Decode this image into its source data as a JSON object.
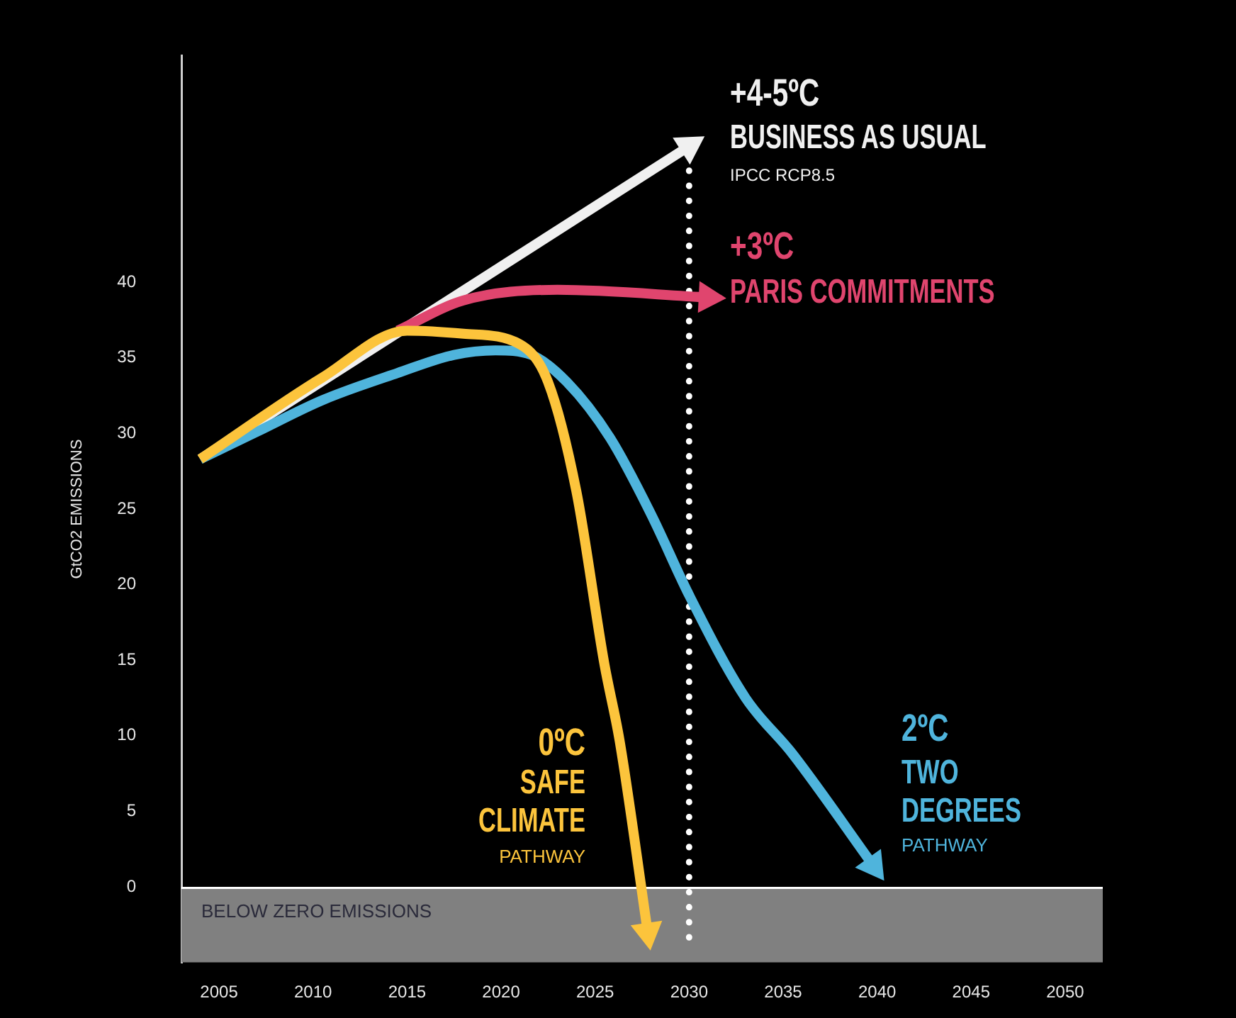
{
  "chart_data": {
    "type": "line",
    "ylabel": "GtCO2 EMISSIONS",
    "xlim": [
      2003,
      2052
    ],
    "xticks": [
      2005,
      2010,
      2015,
      2020,
      2025,
      2030,
      2035,
      2040,
      2045,
      2050
    ],
    "ylim": [
      -5,
      55
    ],
    "yticks": [
      0,
      5,
      10,
      15,
      20,
      25,
      30,
      35,
      40
    ],
    "grid": false,
    "legend": false,
    "line_style": "solid",
    "series": [
      {
        "color": "#f0f0f0",
        "x": [
          2004,
          2030
        ],
        "values": [
          28.3,
          49
        ]
      },
      {
        "color": "#e0456e",
        "x": [
          2014.5,
          2018,
          2023,
          2031
        ],
        "values": [
          36.8,
          38.8,
          39.5,
          39
        ]
      },
      {
        "color": "#4fb4dc",
        "x": [
          2004,
          2007,
          2010.5,
          2014.5,
          2017.5,
          2019.7,
          2021.6,
          2023.5,
          2025.8,
          2028,
          2030,
          2033,
          2035.5,
          2039.8
        ],
        "values": [
          28.3,
          30.1,
          32.2,
          34,
          35.2,
          35.5,
          35.2,
          33.4,
          29.7,
          24.6,
          19.3,
          12.5,
          8.8,
          1.4
        ]
      },
      {
        "color": "#fcc43c",
        "x": [
          2004,
          2010.5,
          2015,
          2018,
          2021,
          2022.5,
          2024,
          2025.5,
          2026.3,
          2027.8
        ],
        "values": [
          28.3,
          33.7,
          36.8,
          36.6,
          35.9,
          33.4,
          26.2,
          14.7,
          9.7,
          -3
        ]
      }
    ],
    "ref_lines": [
      {
        "axis": "x",
        "value": 2030,
        "color": "#ffffff",
        "line_style": "dotted"
      }
    ],
    "bands": [
      {
        "axis": "y",
        "from": -5,
        "to": 0,
        "label": "BELOW ZERO EMISSIONS",
        "color": "#808080"
      }
    ],
    "annotations": [
      "+4-5ºC",
      "BUSINESS AS USUAL",
      "IPCC RCP8.5",
      "+3ºC",
      "PARIS COMMITMENTS",
      "0ºC",
      "SAFE",
      "CLIMATE",
      "PATHWAY",
      "2ºC",
      "TWO",
      "DEGREES",
      "PATHWAY"
    ]
  }
}
